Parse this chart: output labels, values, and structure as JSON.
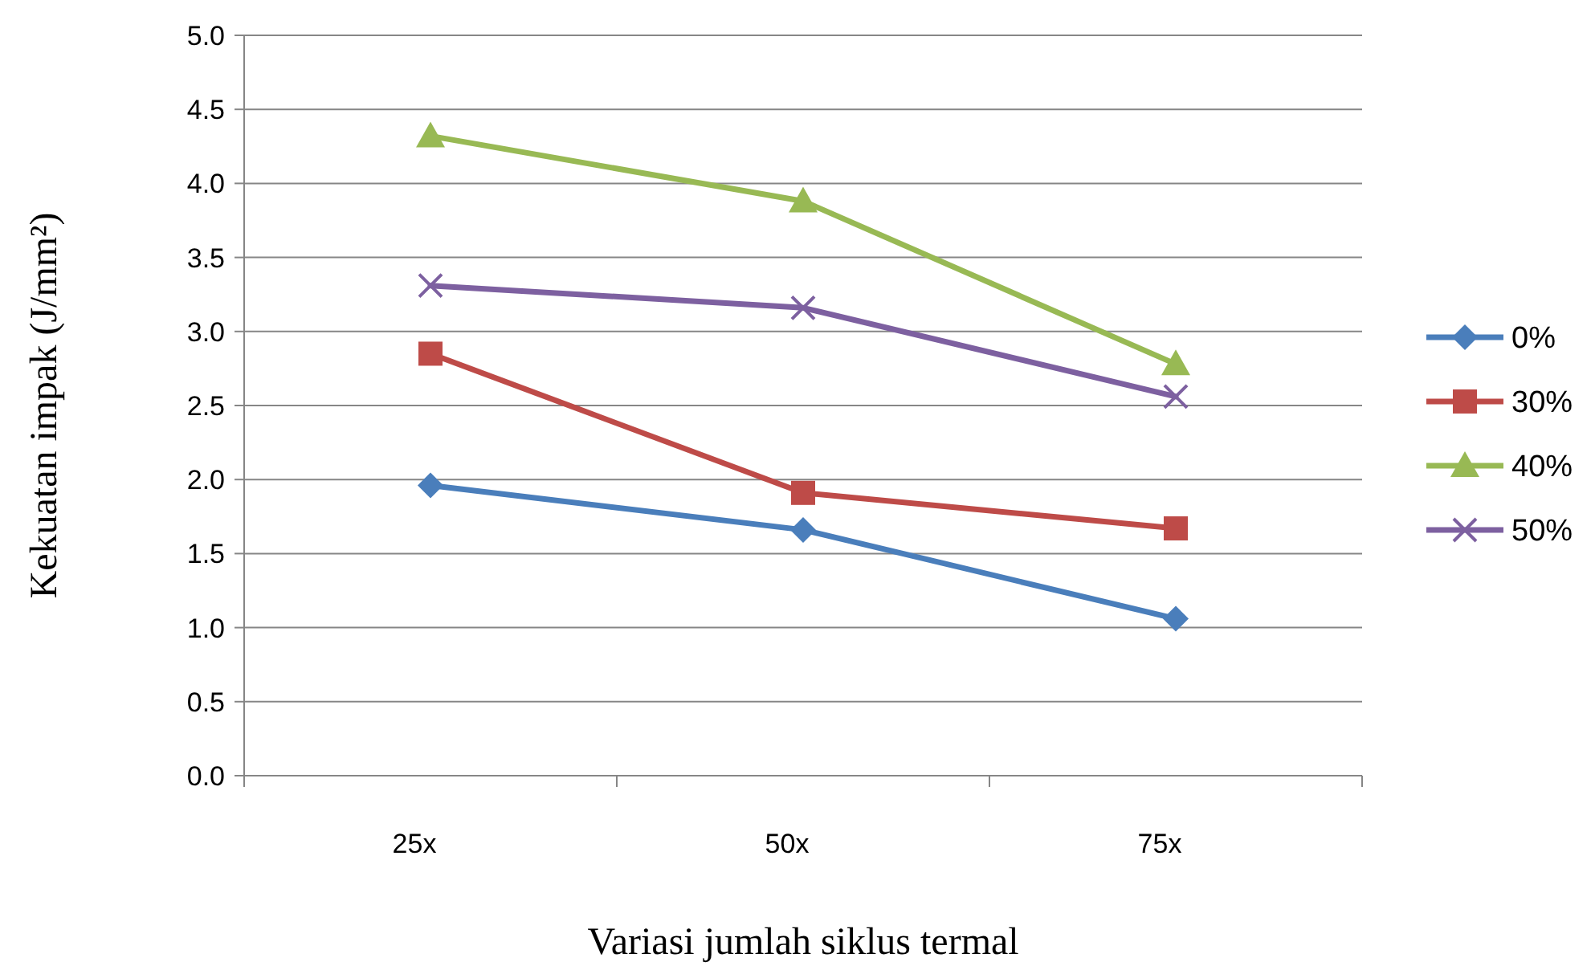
{
  "chart_data": {
    "type": "line",
    "xlabel": "Variasi jumlah siklus termal",
    "ylabel": "Kekuatan impak (J/mm²)",
    "categories": [
      "25x",
      "50x",
      "75x"
    ],
    "series": [
      {
        "name": "0%",
        "color": "#4a7ebb",
        "marker": "diamond",
        "values": [
          1.96,
          1.66,
          1.06
        ]
      },
      {
        "name": "30%",
        "color": "#be4b48",
        "marker": "square",
        "values": [
          2.85,
          1.91,
          1.67
        ]
      },
      {
        "name": "40%",
        "color": "#98b954",
        "marker": "triangle",
        "values": [
          4.32,
          3.88,
          2.78
        ]
      },
      {
        "name": "50%",
        "color": "#7d60a0",
        "marker": "cross",
        "values": [
          3.31,
          3.16,
          2.56
        ]
      }
    ],
    "ylim": [
      0,
      5
    ],
    "yticks": [
      {
        "value": 0,
        "label": "0.0"
      },
      {
        "value": 0.5,
        "label": "0.5"
      },
      {
        "value": 1,
        "label": "1.0"
      },
      {
        "value": 1.5,
        "label": "1.5"
      },
      {
        "value": 2,
        "label": "2.0"
      },
      {
        "value": 2.5,
        "label": "2.5"
      },
      {
        "value": 3,
        "label": "3.0"
      },
      {
        "value": 3.5,
        "label": "3.5"
      },
      {
        "value": 4,
        "label": "4.0"
      },
      {
        "value": 4.5,
        "label": "4.5"
      },
      {
        "value": 5,
        "label": "5.0"
      }
    ],
    "grid": "y",
    "legend": "right"
  }
}
